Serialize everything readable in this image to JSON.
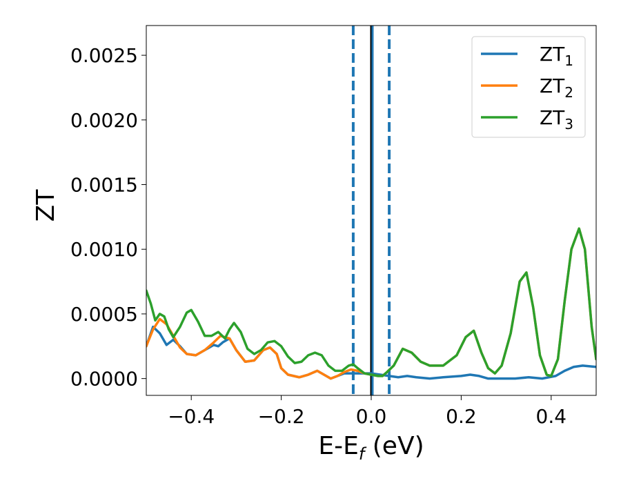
{
  "chart_data": {
    "type": "line",
    "xlabel": "E-E",
    "xlabel_sub": "f",
    "xlabel_unit": " (eV)",
    "ylabel": "ZT",
    "xlim": [
      -0.5,
      0.5
    ],
    "ylim": [
      -0.00013,
      0.00273
    ],
    "xticks": [
      {
        "value": -0.4,
        "label": "−0.4"
      },
      {
        "value": -0.2,
        "label": "−0.2"
      },
      {
        "value": 0.0,
        "label": "0.0"
      },
      {
        "value": 0.2,
        "label": "0.2"
      },
      {
        "value": 0.4,
        "label": "0.4"
      }
    ],
    "yticks": [
      {
        "value": 0.0,
        "label": "0.0000"
      },
      {
        "value": 0.0005,
        "label": "0.0005"
      },
      {
        "value": 0.001,
        "label": "0.0010"
      },
      {
        "value": 0.0015,
        "label": "0.0015"
      },
      {
        "value": 0.002,
        "label": "0.0020"
      },
      {
        "value": 0.0025,
        "label": "0.0025"
      }
    ],
    "legend_position": "top-right",
    "vlines": [
      {
        "x": -0.04,
        "style": "dashed",
        "color": "#1f77b4"
      },
      {
        "x": 0.04,
        "style": "dashed",
        "color": "#1f77b4"
      },
      {
        "x": 0.0,
        "style": "solid",
        "color": "#000000"
      },
      {
        "x": 0.003,
        "style": "solid",
        "color": "#1f77b4"
      }
    ],
    "series": [
      {
        "name": "ZT",
        "sub": "1",
        "color": "#1f77b4",
        "points": [
          [
            -0.5,
            0.00025
          ],
          [
            -0.485,
            0.0004
          ],
          [
            -0.47,
            0.00035
          ],
          [
            -0.455,
            0.00026
          ],
          [
            -0.44,
            0.0003
          ],
          [
            -0.425,
            0.00025
          ],
          [
            -0.41,
            0.00019
          ],
          [
            -0.39,
            0.00018
          ],
          [
            -0.37,
            0.00022
          ],
          [
            -0.35,
            0.00026
          ],
          [
            -0.34,
            0.00025
          ],
          [
            -0.33,
            0.00028
          ],
          [
            -0.315,
            0.00031
          ],
          [
            -0.3,
            0.00022
          ],
          [
            -0.28,
            0.00013
          ],
          [
            -0.26,
            0.00014
          ],
          [
            -0.24,
            0.00022
          ],
          [
            -0.225,
            0.00024
          ],
          [
            -0.21,
            0.00019
          ],
          [
            -0.2,
            8e-05
          ],
          [
            -0.185,
            3e-05
          ],
          [
            -0.16,
            1e-05
          ],
          [
            -0.14,
            3e-05
          ],
          [
            -0.12,
            6e-05
          ],
          [
            -0.105,
            3e-05
          ],
          [
            -0.09,
            0.0
          ],
          [
            -0.075,
            2e-05
          ],
          [
            -0.06,
            4e-05
          ],
          [
            -0.04,
            4e-05
          ],
          [
            -0.02,
            4e-05
          ],
          [
            0.0,
            4e-05
          ],
          [
            0.02,
            3e-05
          ],
          [
            0.04,
            2e-05
          ],
          [
            0.06,
            1e-05
          ],
          [
            0.08,
            2e-05
          ],
          [
            0.1,
            1e-05
          ],
          [
            0.13,
            0.0
          ],
          [
            0.16,
            1e-05
          ],
          [
            0.2,
            2e-05
          ],
          [
            0.22,
            3e-05
          ],
          [
            0.24,
            2e-05
          ],
          [
            0.26,
            0.0
          ],
          [
            0.29,
            0.0
          ],
          [
            0.32,
            0.0
          ],
          [
            0.35,
            1e-05
          ],
          [
            0.38,
            0.0
          ],
          [
            0.41,
            2e-05
          ],
          [
            0.43,
            6e-05
          ],
          [
            0.45,
            9e-05
          ],
          [
            0.47,
            0.0001
          ],
          [
            0.5,
            9e-05
          ]
        ]
      },
      {
        "name": "ZT",
        "sub": "2",
        "color": "#ff7f0e",
        "points": [
          [
            -0.5,
            0.00025
          ],
          [
            -0.485,
            0.00038
          ],
          [
            -0.47,
            0.00046
          ],
          [
            -0.455,
            0.00042
          ],
          [
            -0.44,
            0.00033
          ],
          [
            -0.425,
            0.00024
          ],
          [
            -0.41,
            0.00019
          ],
          [
            -0.39,
            0.00018
          ],
          [
            -0.37,
            0.00022
          ],
          [
            -0.35,
            0.00028
          ],
          [
            -0.335,
            0.00033
          ],
          [
            -0.315,
            0.00031
          ],
          [
            -0.3,
            0.00022
          ],
          [
            -0.28,
            0.00013
          ],
          [
            -0.26,
            0.00014
          ],
          [
            -0.24,
            0.00022
          ],
          [
            -0.225,
            0.00024
          ],
          [
            -0.21,
            0.00019
          ],
          [
            -0.2,
            8e-05
          ],
          [
            -0.185,
            3e-05
          ],
          [
            -0.16,
            1e-05
          ],
          [
            -0.14,
            3e-05
          ],
          [
            -0.12,
            6e-05
          ],
          [
            -0.105,
            3e-05
          ],
          [
            -0.09,
            0.0
          ],
          [
            -0.075,
            2e-05
          ],
          [
            -0.06,
            5e-05
          ],
          [
            -0.045,
            7e-05
          ],
          [
            -0.03,
            6e-05
          ],
          [
            -0.015,
            4e-05
          ],
          [
            0.0,
            3e-05
          ],
          [
            0.015,
            2e-05
          ],
          [
            0.025,
            2e-05
          ],
          [
            0.035,
            5e-05
          ],
          [
            0.05,
            0.0001
          ],
          [
            0.07,
            0.00023
          ],
          [
            0.09,
            0.0002
          ],
          [
            0.11,
            0.00013
          ],
          [
            0.13,
            0.0001
          ],
          [
            0.16,
            0.0001
          ],
          [
            0.19,
            0.00018
          ],
          [
            0.21,
            0.00032
          ],
          [
            0.228,
            0.00037
          ],
          [
            0.245,
            0.0002
          ],
          [
            0.26,
            8e-05
          ],
          [
            0.275,
            4e-05
          ],
          [
            0.29,
            0.0001
          ],
          [
            0.31,
            0.00035
          ],
          [
            0.33,
            0.00075
          ],
          [
            0.345,
            0.00082
          ],
          [
            0.36,
            0.00055
          ],
          [
            0.375,
            0.00018
          ],
          [
            0.39,
            3e-05
          ],
          [
            0.4,
            2e-05
          ],
          [
            0.415,
            0.00015
          ],
          [
            0.43,
            0.0006
          ],
          [
            0.445,
            0.001
          ],
          [
            0.462,
            0.00116
          ],
          [
            0.475,
            0.001
          ],
          [
            0.49,
            0.0004
          ],
          [
            0.5,
            0.00015
          ]
        ]
      },
      {
        "name": "ZT",
        "sub": "3",
        "color": "#2ca02c",
        "points": [
          [
            -0.5,
            0.00068
          ],
          [
            -0.49,
            0.00058
          ],
          [
            -0.48,
            0.00045
          ],
          [
            -0.47,
            0.0005
          ],
          [
            -0.46,
            0.00048
          ],
          [
            -0.45,
            0.00038
          ],
          [
            -0.44,
            0.00032
          ],
          [
            -0.425,
            0.0004
          ],
          [
            -0.41,
            0.00051
          ],
          [
            -0.4,
            0.00053
          ],
          [
            -0.385,
            0.00044
          ],
          [
            -0.37,
            0.00033
          ],
          [
            -0.355,
            0.00033
          ],
          [
            -0.34,
            0.00036
          ],
          [
            -0.325,
            0.00031
          ],
          [
            -0.315,
            0.00038
          ],
          [
            -0.305,
            0.00043
          ],
          [
            -0.29,
            0.00036
          ],
          [
            -0.275,
            0.00023
          ],
          [
            -0.26,
            0.00019
          ],
          [
            -0.245,
            0.00022
          ],
          [
            -0.23,
            0.00028
          ],
          [
            -0.215,
            0.00029
          ],
          [
            -0.2,
            0.00025
          ],
          [
            -0.185,
            0.00017
          ],
          [
            -0.17,
            0.00012
          ],
          [
            -0.155,
            0.00013
          ],
          [
            -0.14,
            0.00018
          ],
          [
            -0.125,
            0.0002
          ],
          [
            -0.11,
            0.00018
          ],
          [
            -0.095,
            0.0001
          ],
          [
            -0.08,
            6e-05
          ],
          [
            -0.065,
            6e-05
          ],
          [
            -0.05,
            0.0001
          ],
          [
            -0.04,
            0.00011
          ],
          [
            -0.03,
            8e-05
          ],
          [
            -0.015,
            4e-05
          ],
          [
            0.0,
            3e-05
          ],
          [
            0.015,
            2e-05
          ],
          [
            0.025,
            2e-05
          ],
          [
            0.035,
            5e-05
          ],
          [
            0.05,
            0.0001
          ],
          [
            0.07,
            0.00023
          ],
          [
            0.09,
            0.0002
          ],
          [
            0.11,
            0.00013
          ],
          [
            0.13,
            0.0001
          ],
          [
            0.16,
            0.0001
          ],
          [
            0.19,
            0.00018
          ],
          [
            0.21,
            0.00032
          ],
          [
            0.228,
            0.00037
          ],
          [
            0.245,
            0.0002
          ],
          [
            0.26,
            8e-05
          ],
          [
            0.275,
            4e-05
          ],
          [
            0.29,
            0.0001
          ],
          [
            0.31,
            0.00035
          ],
          [
            0.33,
            0.00075
          ],
          [
            0.345,
            0.00082
          ],
          [
            0.36,
            0.00055
          ],
          [
            0.375,
            0.00018
          ],
          [
            0.39,
            3e-05
          ],
          [
            0.4,
            2e-05
          ],
          [
            0.415,
            0.00015
          ],
          [
            0.43,
            0.0006
          ],
          [
            0.445,
            0.001
          ],
          [
            0.462,
            0.00116
          ],
          [
            0.475,
            0.001
          ],
          [
            0.49,
            0.0004
          ],
          [
            0.5,
            0.00015
          ]
        ]
      }
    ]
  }
}
